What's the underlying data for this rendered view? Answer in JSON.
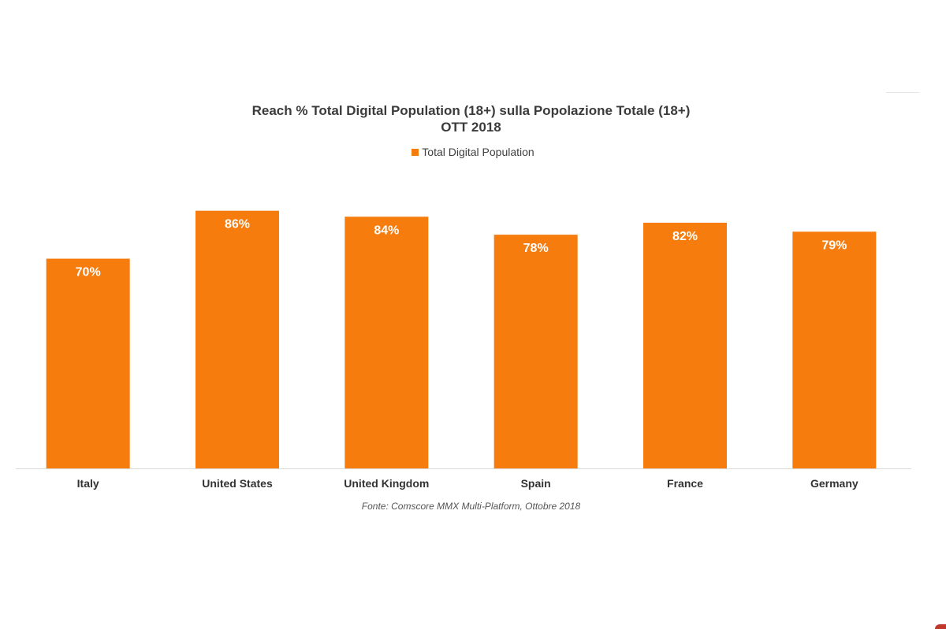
{
  "chart_data": {
    "type": "bar",
    "title": "Reach % Total Digital Population (18+) sulla Popolazione Totale (18+)",
    "subtitle": "OTT 2018",
    "categories": [
      "Italy",
      "United States",
      "United Kingdom",
      "Spain",
      "France",
      "Germany"
    ],
    "series": [
      {
        "name": "Total Digital Population",
        "values": [
          70,
          86,
          84,
          78,
          82,
          79
        ]
      }
    ],
    "data_labels": [
      "70%",
      "86%",
      "84%",
      "78%",
      "82%",
      "79%"
    ],
    "ylim": [
      0,
      100
    ],
    "xlabel": "",
    "ylabel": "",
    "grid": false,
    "legend_position": "top",
    "bar_color": "#f57c0d",
    "source": "Fonte: Comscore MMX Multi-Platform, Ottobre 2018"
  }
}
